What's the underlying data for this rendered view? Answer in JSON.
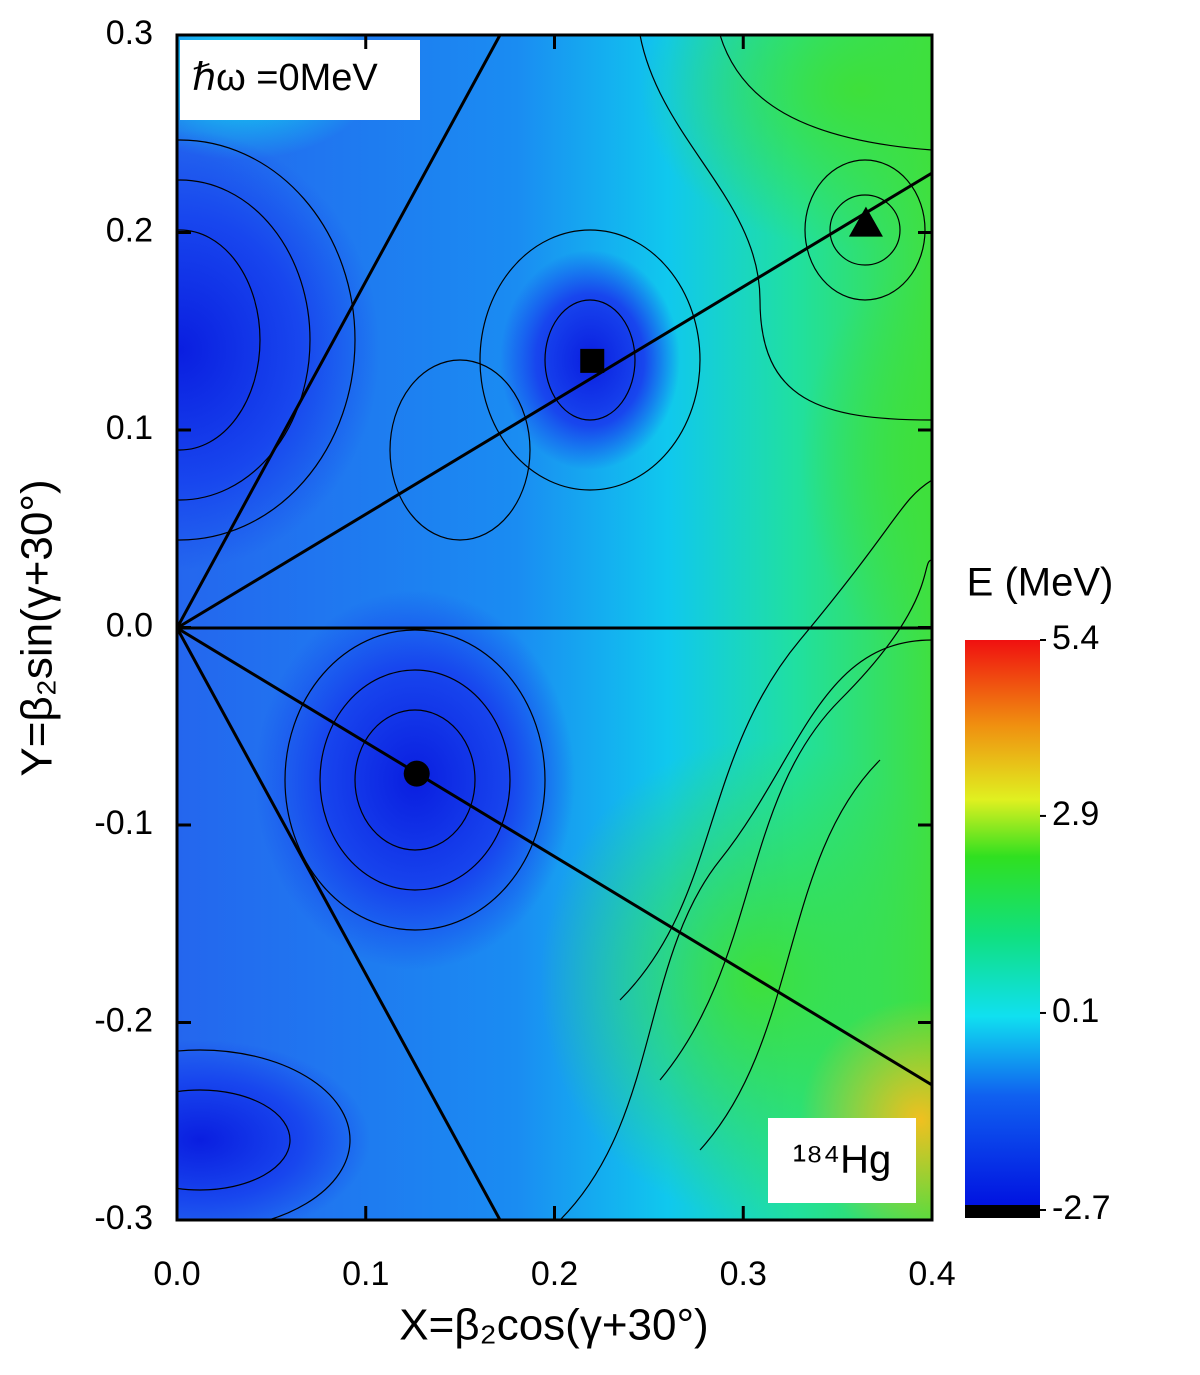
{
  "chart_data": {
    "type": "contour",
    "x_label": "X=β₂cos(γ+30°)",
    "y_label": "Y=β₂sin(γ+30°)",
    "xlim": [
      0,
      0.4
    ],
    "ylim": [
      -0.3,
      0.3
    ],
    "xticks": [
      {
        "value": 0,
        "label": "0.0"
      },
      0.1,
      0.2,
      0.3,
      0.4
    ],
    "yticks": [
      -0.3,
      -0.2,
      -0.1,
      {
        "value": 0,
        "label": "0.0"
      },
      0.1,
      0.2,
      0.3
    ],
    "colorbar_label": "E (MeV)",
    "zlim": [
      -2.7,
      5.4
    ],
    "zticks": [
      -2.7,
      0.1,
      2.9,
      5.4
    ],
    "annotations": [
      "ℏω =0MeV",
      "¹⁸⁴Hg"
    ],
    "points": [
      {
        "x": 0.127,
        "y": -0.074,
        "marker": "circle",
        "color": "#000000"
      },
      {
        "x": 0.22,
        "y": 0.135,
        "marker": "square",
        "color": "#000000"
      },
      {
        "x": 0.365,
        "y": 0.205,
        "marker": "triangle",
        "color": "#000000"
      }
    ]
  }
}
